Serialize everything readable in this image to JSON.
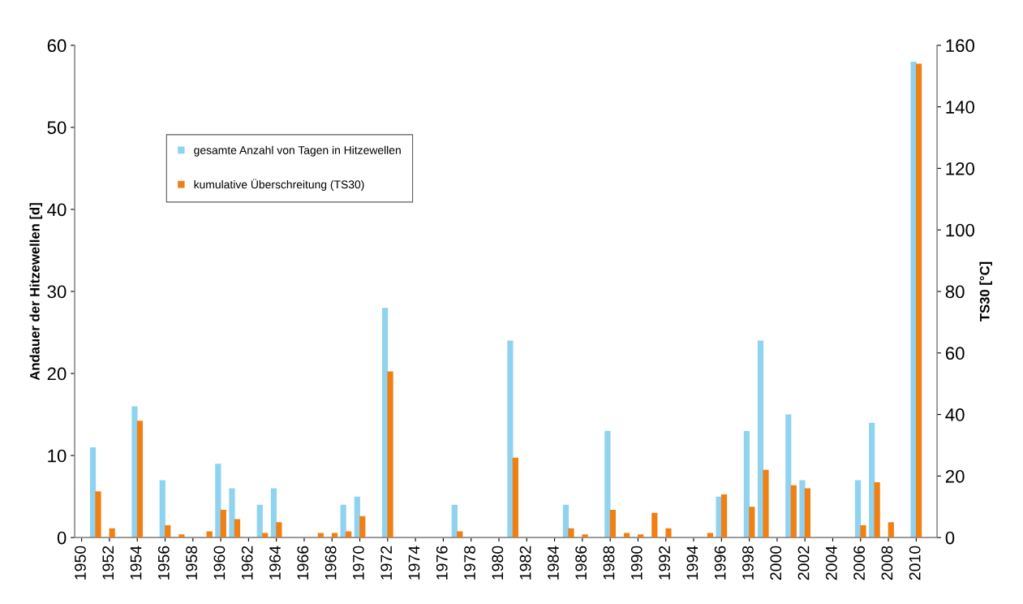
{
  "chart_data": {
    "type": "bar",
    "ylabel": "Andauer der Hitzewellen [d]",
    "y2label": "TS30 [°C]",
    "categories": [
      "1950",
      null,
      "1952",
      null,
      "1954",
      null,
      "1956",
      null,
      "1958",
      null,
      "1960",
      null,
      "1962",
      null,
      "1964",
      null,
      "1966",
      null,
      "1968",
      null,
      "1970",
      null,
      "1972",
      null,
      "1974",
      null,
      "1976",
      null,
      "1978",
      null,
      "1980",
      null,
      "1982",
      null,
      "1984",
      null,
      "1986",
      null,
      "1988",
      null,
      "1990",
      null,
      "1992",
      null,
      "1994",
      null,
      "1996",
      null,
      "1998",
      null,
      "2000",
      null,
      "2002",
      null,
      "2004",
      null,
      "2006",
      null,
      "2008",
      null,
      "2010",
      null
    ],
    "series": [
      {
        "name": "gesamte Anzahl von Tagen in Hitzewellen",
        "color": "#8fd3f0",
        "values": [
          0,
          11,
          0,
          0,
          16,
          0,
          7,
          0,
          0,
          0,
          9,
          6,
          0,
          4,
          6,
          0,
          0,
          0,
          0,
          4,
          5,
          0,
          28,
          0,
          0,
          0,
          0,
          4,
          0,
          0,
          0,
          24,
          0,
          0,
          0,
          4,
          0,
          0,
          13,
          0,
          0,
          0,
          0,
          0,
          0,
          0,
          5,
          0,
          13,
          24,
          0,
          15,
          7,
          0,
          0,
          0,
          7,
          14,
          0,
          0,
          58,
          0
        ]
      },
      {
        "name": "kumulative Überschreitung (TS30)",
        "color": "#f07f14",
        "axis": "y2",
        "values": [
          0,
          15,
          3,
          0,
          38,
          0,
          4,
          1,
          0,
          2,
          9,
          6,
          0,
          1.5,
          5,
          0,
          0,
          1.5,
          1.5,
          2,
          7,
          0,
          54,
          0,
          0,
          0,
          0,
          2,
          0,
          0,
          0,
          26,
          0,
          0,
          0,
          3,
          1,
          0,
          9,
          1.5,
          1,
          8,
          3,
          0,
          0,
          1.5,
          14,
          0,
          10,
          22,
          0,
          17,
          16,
          0,
          0,
          0,
          4,
          18,
          5,
          0,
          154,
          0
        ]
      }
    ],
    "ylim": [
      0,
      60
    ],
    "yticks": [
      0,
      10,
      20,
      30,
      40,
      50,
      60
    ],
    "y2lim": [
      0,
      160
    ],
    "y2ticks": [
      0,
      20,
      40,
      60,
      80,
      100,
      120,
      140,
      160
    ],
    "legend": "top left",
    "grid": false
  }
}
